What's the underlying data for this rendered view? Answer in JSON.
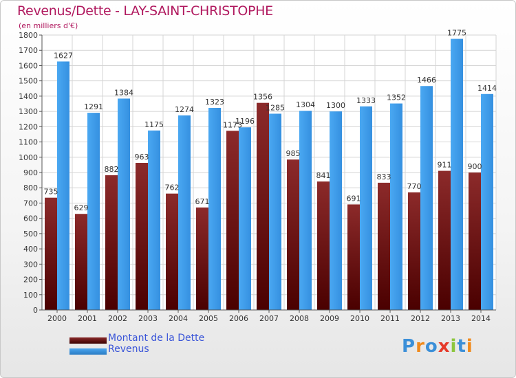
{
  "header": {
    "title": "Revenus/Dette - LAY-SAINT-CHRISTOPHE",
    "subtitle": "(en milliers d'€)"
  },
  "chart_data": {
    "type": "bar",
    "title": "Revenus/Dette - LAY-SAINT-CHRISTOPHE",
    "subtitle": "(en milliers d'€)",
    "xlabel": "",
    "ylabel": "",
    "categories": [
      "2000",
      "2001",
      "2002",
      "2003",
      "2004",
      "2005",
      "2006",
      "2007",
      "2008",
      "2009",
      "2010",
      "2011",
      "2012",
      "2013",
      "2014"
    ],
    "series": [
      {
        "name": "Montant de la Dette",
        "color": "#7a1414",
        "values": [
          735,
          629,
          882,
          963,
          762,
          671,
          1173,
          1356,
          985,
          841,
          691,
          833,
          770,
          911,
          900
        ]
      },
      {
        "name": "Revenus",
        "color": "#3d9be9",
        "values": [
          1627,
          1291,
          1384,
          1175,
          1274,
          1323,
          1196,
          1285,
          1304,
          1300,
          1333,
          1352,
          1466,
          1775,
          1414
        ]
      }
    ],
    "yticks": [
      0,
      100,
      200,
      300,
      400,
      500,
      600,
      700,
      800,
      900,
      1000,
      1100,
      1200,
      1300,
      1400,
      1500,
      1600,
      1700,
      1800
    ],
    "ylim": [
      0,
      1800
    ],
    "grid": true,
    "legend_position": "bottom-left"
  },
  "legend": {
    "items": [
      {
        "label": "Montant de la Dette",
        "color": "#7a1414"
      },
      {
        "label": "Revenus",
        "color": "#3d9be9"
      }
    ]
  },
  "logo": {
    "text": "Proxiti",
    "letters": [
      "P",
      "r",
      "o",
      "x",
      "i",
      "t",
      "i"
    ],
    "colors": [
      "#3b8fd8",
      "#f08a1c",
      "#3b8fd8",
      "#e63a2a",
      "#8cc63e",
      "#3b8fd8",
      "#f08a1c"
    ]
  }
}
